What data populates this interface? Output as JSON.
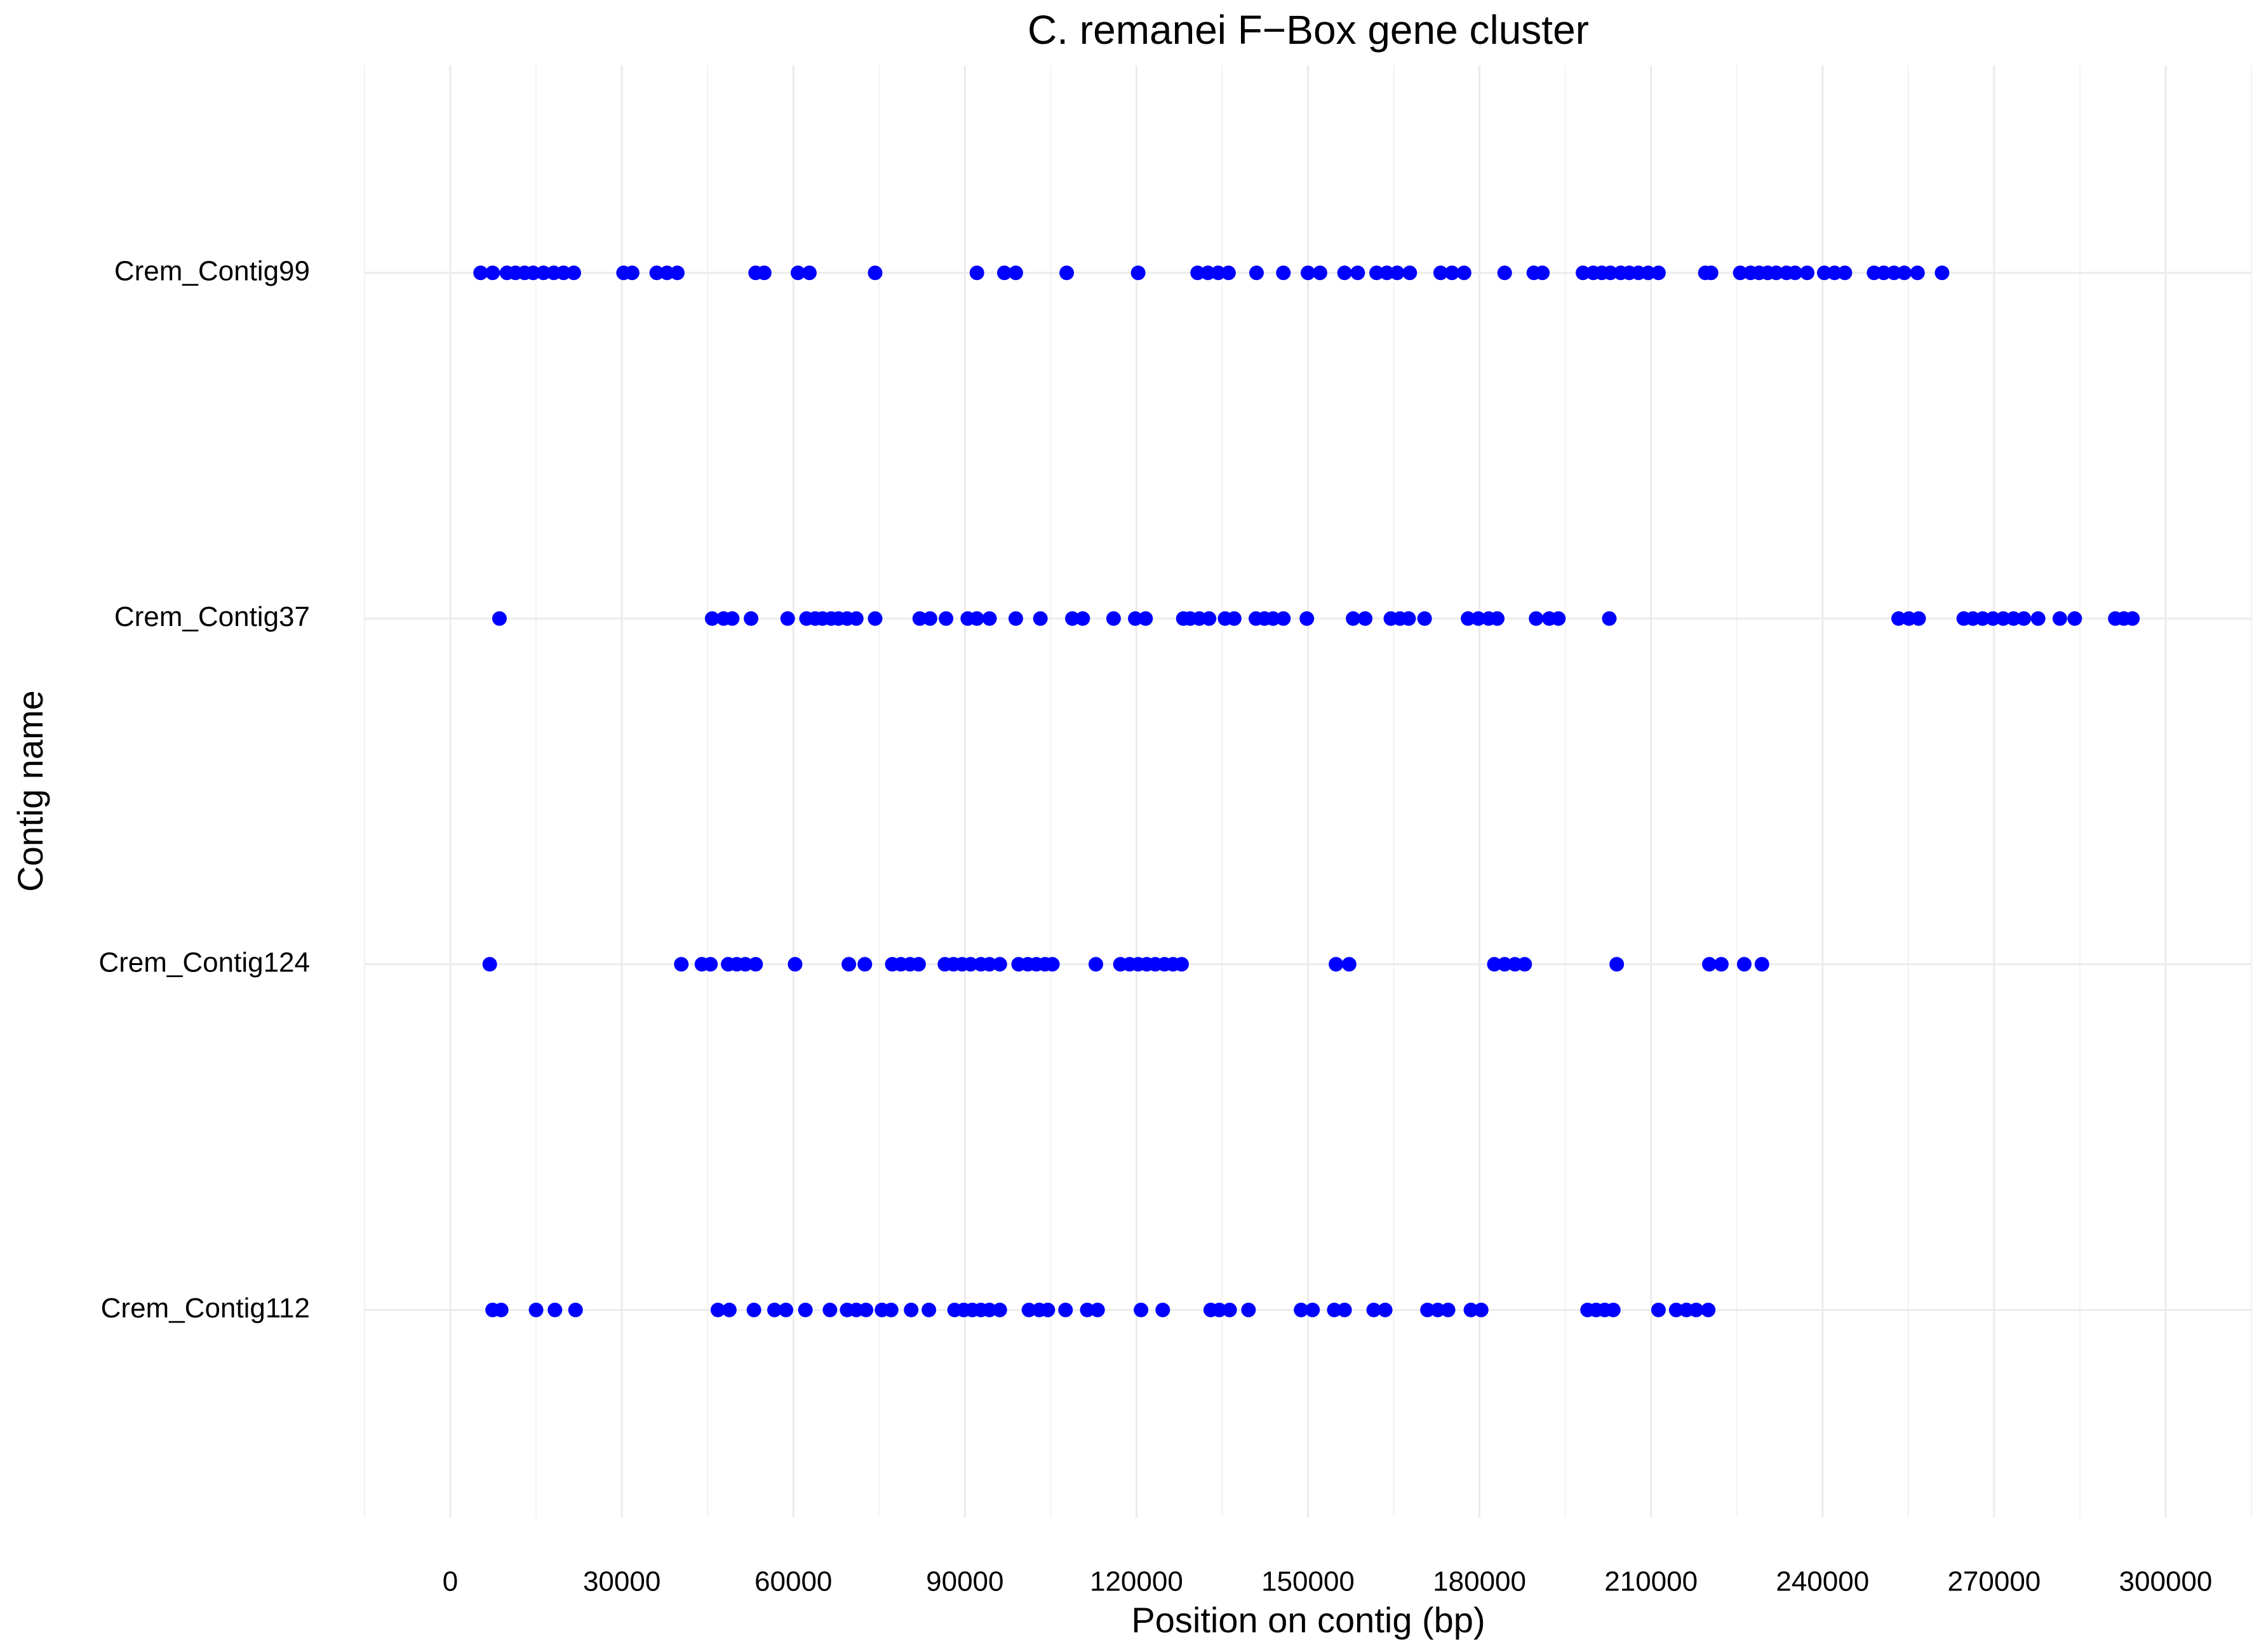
{
  "chart_data": {
    "type": "strip",
    "title": "C. remanei F−Box gene cluster",
    "x_label": "Position on contig (bp)",
    "y_label": "Contig name",
    "color": "#0000ff",
    "grid": true,
    "xlim": [
      -15000,
      315000
    ],
    "xticks": [
      0,
      30000,
      60000,
      90000,
      120000,
      150000,
      180000,
      210000,
      240000,
      270000,
      300000
    ],
    "rows": [
      {
        "label": "Crem_Contig99",
        "x": [
          5300,
          7400,
          9900,
          11400,
          13000,
          14500,
          16300,
          18100,
          19800,
          21600,
          30300,
          31800,
          36100,
          37900,
          39700,
          53400,
          54900,
          60800,
          62800,
          74300,
          92100,
          96900,
          98900,
          107800,
          120300,
          130700,
          132500,
          134300,
          136100,
          141000,
          145700,
          150000,
          152100,
          156400,
          158700,
          162000,
          163800,
          165600,
          167800,
          173200,
          175200,
          177300,
          184400,
          189500,
          191000,
          198100,
          199900,
          201400,
          202900,
          204700,
          206200,
          207800,
          209500,
          211300,
          219500,
          220500,
          225600,
          227400,
          228900,
          230400,
          231900,
          233700,
          235200,
          237300,
          240300,
          242100,
          243900,
          249000,
          250700,
          252500,
          254300,
          256600,
          260900
        ]
      },
      {
        "label": "Crem_Contig37",
        "x": [
          8600,
          45800,
          47800,
          49300,
          52600,
          59000,
          62300,
          63800,
          65100,
          66600,
          67900,
          69400,
          71000,
          74300,
          82100,
          83900,
          86700,
          90500,
          92100,
          94300,
          98900,
          103200,
          108800,
          110600,
          116000,
          119800,
          121600,
          128200,
          129400,
          131000,
          132700,
          135500,
          137100,
          140900,
          142400,
          143900,
          145700,
          149800,
          157900,
          160000,
          164500,
          166100,
          167600,
          170400,
          178000,
          179800,
          181600,
          183100,
          189900,
          192200,
          193800,
          202700,
          253300,
          255100,
          256800,
          264700,
          266300,
          268000,
          269800,
          271600,
          273400,
          275200,
          277700,
          281500,
          284100,
          291200,
          292700,
          294200
        ]
      },
      {
        "label": "Crem_Contig124",
        "x": [
          6900,
          40400,
          44000,
          45500,
          48600,
          50100,
          51600,
          53400,
          60300,
          69700,
          72500,
          77300,
          78800,
          80400,
          81900,
          86500,
          88000,
          89500,
          91000,
          92800,
          94300,
          96100,
          99400,
          101000,
          102500,
          104000,
          105300,
          112900,
          117200,
          118800,
          120300,
          121800,
          123300,
          124900,
          126400,
          127900,
          154900,
          157200,
          182600,
          184400,
          186200,
          187900,
          204000,
          220200,
          222300,
          226300,
          229400
        ]
      },
      {
        "label": "Crem_Contig112",
        "x": [
          7400,
          8900,
          15000,
          18300,
          21900,
          46800,
          48800,
          53100,
          56700,
          58700,
          62100,
          66400,
          69400,
          71000,
          72700,
          75500,
          77100,
          80600,
          83700,
          88200,
          89800,
          91300,
          92800,
          94300,
          96100,
          101200,
          103000,
          104500,
          107600,
          111400,
          113200,
          120800,
          124600,
          133000,
          134500,
          136300,
          139600,
          148800,
          150800,
          154600,
          156400,
          161500,
          163500,
          170900,
          172700,
          174500,
          178500,
          180300,
          198900,
          200400,
          201900,
          203400,
          211300,
          214400,
          216200,
          217900,
          220000
        ]
      }
    ]
  }
}
